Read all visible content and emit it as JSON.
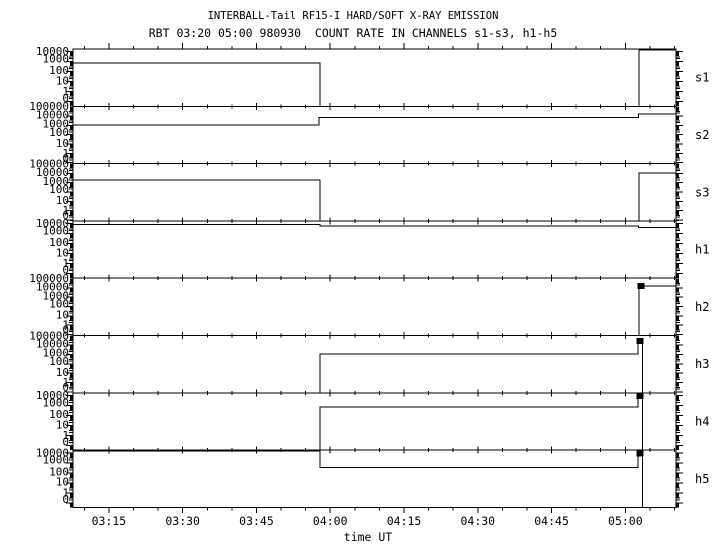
{
  "title": "INTERBALL-Tail RF15-I HARD/SOFT X-RAY EMISSION",
  "subtitle": "RBT 03:20 05:00 980930  COUNT RATE IN CHANNELS s1-s3, h1-h5",
  "xlabel": "time UT",
  "colors": {
    "foreground": "#000000",
    "background": "#ffffff"
  },
  "chart_data": {
    "type": "line",
    "title": "INTERBALL-Tail RF15-I HARD/SOFT X-RAY EMISSION",
    "subtitle": "RBT 03:20 05:00 980930  COUNT RATE IN CHANNELS s1-s3, h1-h5",
    "xlabel": "time UT",
    "x_units": "minutes after 03:00 UT",
    "x_range_min": [
      7.7,
      130.3
    ],
    "x_minor_step_min": 5,
    "x_ticks": [
      {
        "min": 15,
        "label": "03:15"
      },
      {
        "min": 30,
        "label": "03:30"
      },
      {
        "min": 45,
        "label": "03:45"
      },
      {
        "min": 60,
        "label": "04:00"
      },
      {
        "min": 75,
        "label": "04:15"
      },
      {
        "min": 90,
        "label": "04:30"
      },
      {
        "min": 105,
        "label": "04:45"
      },
      {
        "min": 120,
        "label": "05:00"
      }
    ],
    "y_scale": "log",
    "panels": [
      {
        "name": "s1",
        "label": "s1",
        "y_top": 10000,
        "y_tick_labels": [
          "10000",
          "1000",
          "100",
          "10",
          "1",
          "0"
        ],
        "segments": [
          {
            "t0": 7.7,
            "t1": 57.9,
            "rate": 700
          },
          {
            "t0": 57.9,
            "t1": 122.8,
            "rate": 0
          },
          {
            "t0": 122.8,
            "t1": 130.3,
            "rate": 20000
          }
        ]
      },
      {
        "name": "s2",
        "label": "s2",
        "y_top": 100000,
        "y_tick_labels": [
          "100000",
          "10000",
          "1000",
          "100",
          "10",
          "1",
          "0"
        ],
        "segments": [
          {
            "t0": 7.7,
            "t1": 57.7,
            "rate": 1100
          },
          {
            "t0": 57.7,
            "t1": 122.7,
            "rate": 6600
          },
          {
            "t0": 122.7,
            "t1": 130.3,
            "rate": 16000
          }
        ]
      },
      {
        "name": "s3",
        "label": "s3",
        "y_top": 100000,
        "y_tick_labels": [
          "100000",
          "10000",
          "1000",
          "100",
          "10",
          "1",
          "0"
        ],
        "segments": [
          {
            "t0": 7.7,
            "t1": 57.9,
            "rate": 2000
          },
          {
            "t0": 57.9,
            "t1": 122.8,
            "rate": 0
          },
          {
            "t0": 122.8,
            "t1": 130.3,
            "rate": 10500
          }
        ]
      },
      {
        "name": "h1",
        "label": "h1",
        "y_top": 10000,
        "y_tick_labels": [
          "10000",
          "1000",
          "100",
          "10",
          "1",
          "0"
        ],
        "segments": [
          {
            "t0": 7.7,
            "t1": 57.9,
            "rate": 7800
          },
          {
            "t0": 57.9,
            "t1": 122.7,
            "rate": 5600
          },
          {
            "t0": 122.7,
            "t1": 130.3,
            "rate": 3900
          }
        ]
      },
      {
        "name": "h2",
        "label": "h2",
        "y_top": 100000,
        "y_tick_labels": [
          "100000",
          "10000",
          "1000",
          "100",
          "10",
          "1",
          "0"
        ],
        "segments": [
          {
            "t0": 7.7,
            "t1": 122.8,
            "rate": 0
          },
          {
            "t0": 122.8,
            "t1": 130.3,
            "rate": 16000,
            "marker": true
          }
        ]
      },
      {
        "name": "h3",
        "label": "h3",
        "y_top": 100000,
        "y_tick_labels": [
          "100000",
          "10000",
          "1000",
          "100",
          "10",
          "1",
          "0"
        ],
        "segments": [
          {
            "t0": 7.7,
            "t1": 57.9,
            "rate": 0
          },
          {
            "t0": 57.9,
            "t1": 122.6,
            "rate": 1100
          },
          {
            "t0": 122.6,
            "t1": 123.5,
            "rate": 29000,
            "marker": true
          },
          {
            "t0": 123.5,
            "t1": 130.3,
            "rate": 0
          }
        ]
      },
      {
        "name": "h4",
        "label": "h4",
        "y_top": 10000,
        "y_tick_labels": [
          "10000",
          "1000",
          "100",
          "10",
          "1",
          "0"
        ],
        "segments": [
          {
            "t0": 7.7,
            "t1": 57.9,
            "rate": 0
          },
          {
            "t0": 57.9,
            "t1": 122.6,
            "rate": 690
          },
          {
            "t0": 122.6,
            "t1": 123.5,
            "rate": 9300,
            "marker": true
          },
          {
            "t0": 123.5,
            "t1": 130.3,
            "rate": 0
          }
        ]
      },
      {
        "name": "h5",
        "label": "h5",
        "y_top": 10000,
        "y_tick_labels": [
          "10000",
          "1000",
          "100",
          "10",
          "1",
          "0"
        ],
        "segments": [
          {
            "t0": 7.7,
            "t1": 57.9,
            "rate": 15000
          },
          {
            "t0": 57.9,
            "t1": 122.6,
            "rate": 330
          },
          {
            "t0": 122.6,
            "t1": 123.5,
            "rate": 8300,
            "marker": true
          },
          {
            "t0": 123.5,
            "t1": 130.3,
            "rate": 0
          }
        ]
      }
    ]
  }
}
